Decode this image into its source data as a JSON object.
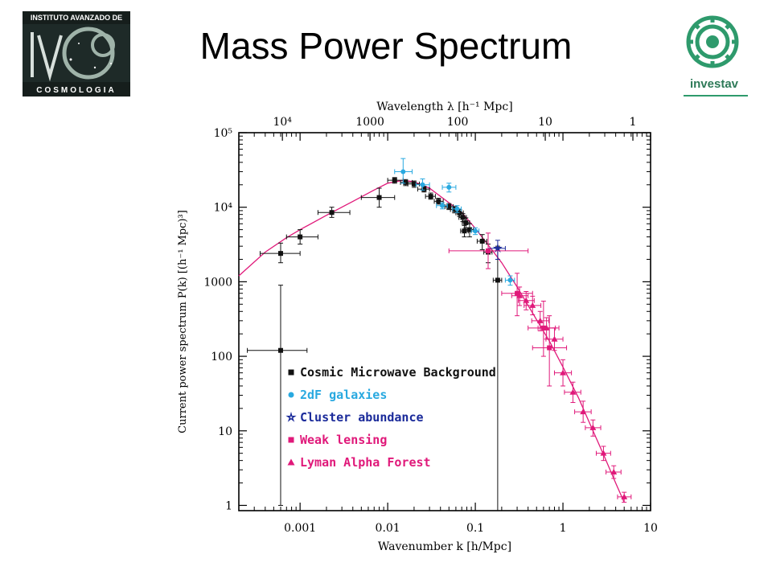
{
  "slide": {
    "title": "Mass Power Spectrum"
  },
  "logo_left": {
    "line1": "INSTITUTO AVANZADO DE",
    "line2": "COSMOLOGIA",
    "letters": "IACC"
  },
  "logo_right": {
    "name": "investav"
  },
  "colors": {
    "cmb": "#111111",
    "twodf": "#29a9e0",
    "cluster": "#1a2a9a",
    "lensing": "#e0197a",
    "lyman": "#e0197a",
    "theory": "#e0197a"
  },
  "chart_data": {
    "type": "scatter",
    "xlabel": "Wavenumber k [h/Mpc]",
    "x2label": "Wavelength λ [h⁻¹ Mpc]",
    "ylabel": "Current power spectrum P(k) [(h⁻¹ Mpc)³]",
    "xscale": "log",
    "yscale": "log",
    "xlim": [
      0.0002,
      10
    ],
    "ylim": [
      0.85,
      100000
    ],
    "x_ticks": [
      {
        "v": 0.001,
        "label": "0.001"
      },
      {
        "v": 0.01,
        "label": "0.01"
      },
      {
        "v": 0.1,
        "label": "0.1"
      },
      {
        "v": 1,
        "label": "1"
      },
      {
        "v": 10,
        "label": "10"
      }
    ],
    "y_ticks": [
      {
        "v": 1,
        "label": "1"
      },
      {
        "v": 10,
        "label": "10"
      },
      {
        "v": 100,
        "label": "100"
      },
      {
        "v": 1000,
        "label": "1000"
      },
      {
        "v": 10000,
        "label": "10⁴"
      },
      {
        "v": 100000,
        "label": "10⁵"
      }
    ],
    "x2_ticks": [
      {
        "v": 10000,
        "label": "10⁴"
      },
      {
        "v": 1000,
        "label": "1000"
      },
      {
        "v": 100,
        "label": "100"
      },
      {
        "v": 10,
        "label": "10"
      },
      {
        "v": 1,
        "label": "1"
      }
    ],
    "legend_position": "lower-center",
    "series": [
      {
        "name": "Cosmic Microwave Background",
        "key": "cmb",
        "marker": "square",
        "points": [
          {
            "x": 0.0006,
            "y": 120,
            "xe": [
              0.00025,
              0.0012
            ],
            "ye": [
              1,
              900
            ]
          },
          {
            "x": 0.0006,
            "y": 2400,
            "xe": [
              0.00035,
              0.001
            ],
            "ye": [
              1800,
              3300
            ]
          },
          {
            "x": 0.001,
            "y": 4000,
            "xe": [
              0.0007,
              0.0016
            ],
            "ye": [
              3200,
              5000
            ]
          },
          {
            "x": 0.0023,
            "y": 8500,
            "xe": [
              0.0016,
              0.0037
            ],
            "ye": [
              7300,
              10000
            ]
          },
          {
            "x": 0.008,
            "y": 13500,
            "xe": [
              0.005,
              0.012
            ],
            "ye": [
              10000,
              18000
            ]
          },
          {
            "x": 0.012,
            "y": 23000,
            "xe": [
              0.01,
              0.015
            ],
            "ye": [
              21000,
              25000
            ]
          },
          {
            "x": 0.016,
            "y": 21500,
            "xe": [
              0.014,
              0.019
            ],
            "ye": [
              19500,
              23500
            ]
          },
          {
            "x": 0.02,
            "y": 20500,
            "xe": [
              0.017,
              0.023
            ],
            "ye": [
              18500,
              22500
            ]
          },
          {
            "x": 0.026,
            "y": 17500,
            "xe": [
              0.022,
              0.03
            ],
            "ye": [
              16000,
              19000
            ]
          },
          {
            "x": 0.031,
            "y": 14000,
            "xe": [
              0.027,
              0.035
            ],
            "ye": [
              12800,
              15500
            ]
          },
          {
            "x": 0.038,
            "y": 12000,
            "xe": [
              0.034,
              0.043
            ],
            "ye": [
              11000,
              13200
            ]
          },
          {
            "x": 0.05,
            "y": 10200,
            "xe": [
              0.045,
              0.056
            ],
            "ye": [
              9300,
              11200
            ]
          },
          {
            "x": 0.058,
            "y": 9300,
            "xe": [
              0.052,
              0.064
            ],
            "ye": [
              8400,
              10200
            ]
          },
          {
            "x": 0.066,
            "y": 8400,
            "xe": [
              0.06,
              0.073
            ],
            "ye": [
              7500,
              9300
            ]
          },
          {
            "x": 0.072,
            "y": 7300,
            "xe": [
              0.065,
              0.079
            ],
            "ye": [
              6400,
              8200
            ]
          },
          {
            "x": 0.078,
            "y": 6200,
            "xe": [
              0.071,
              0.086
            ],
            "ye": [
              5300,
              7200
            ]
          },
          {
            "x": 0.086,
            "y": 5000,
            "xe": [
              0.078,
              0.095
            ],
            "ye": [
              4000,
              6000
            ]
          },
          {
            "x": 0.075,
            "y": 4800,
            "xe": [
              0.068,
              0.083
            ],
            "ye": [
              4000,
              5700
            ]
          },
          {
            "x": 0.12,
            "y": 3500,
            "xe": [
              0.105,
              0.135
            ],
            "ye": [
              2700,
              4300
            ]
          },
          {
            "x": 0.14,
            "y": 2500,
            "xe": [
              0.125,
              0.155
            ],
            "ye": [
              1800,
              3200
            ]
          },
          {
            "x": 0.18,
            "y": 1050,
            "xe": [
              0.16,
              0.2
            ],
            "ye": [
              0.8,
              3000
            ]
          }
        ]
      },
      {
        "name": "2dF galaxies",
        "key": "twodf",
        "marker": "circle",
        "points": [
          {
            "x": 0.015,
            "y": 30000,
            "xe": [
              0.012,
              0.019
            ],
            "ye": [
              21000,
              45000
            ]
          },
          {
            "x": 0.025,
            "y": 20000,
            "xe": [
              0.021,
              0.03
            ],
            "ye": [
              17000,
              24000
            ]
          },
          {
            "x": 0.042,
            "y": 10500,
            "xe": [
              0.036,
              0.048
            ],
            "ye": [
              9500,
              11500
            ]
          },
          {
            "x": 0.062,
            "y": 9500,
            "xe": [
              0.055,
              0.069
            ],
            "ye": [
              8500,
              10500
            ]
          },
          {
            "x": 0.1,
            "y": 4800,
            "xe": [
              0.09,
              0.11
            ],
            "ye": [
              4300,
              5300
            ]
          },
          {
            "x": 0.25,
            "y": 1050,
            "xe": [
              0.22,
              0.28
            ],
            "ye": [
              900,
              1200
            ]
          },
          {
            "x": 0.05,
            "y": 18500,
            "xe": [
              0.042,
              0.06
            ],
            "ye": [
              16000,
              21000
            ]
          }
        ]
      },
      {
        "name": "Cluster abundance",
        "key": "cluster",
        "marker": "star",
        "points": [
          {
            "x": 0.18,
            "y": 2800,
            "xe": [
              0.14,
              0.22
            ],
            "ye": [
              2000,
              3600
            ]
          }
        ]
      },
      {
        "name": "Weak lensing",
        "key": "lensing",
        "marker": "square",
        "points": [
          {
            "x": 0.14,
            "y": 2600,
            "xe": [
              0.05,
              0.4
            ],
            "ye": [
              1500,
              4500
            ]
          },
          {
            "x": 0.3,
            "y": 700,
            "xe": [
              0.2,
              0.45
            ],
            "ye": [
              350,
              1300
            ]
          },
          {
            "x": 0.6,
            "y": 240,
            "xe": [
              0.4,
              0.9
            ],
            "ye": [
              100,
              550
            ]
          },
          {
            "x": 0.7,
            "y": 130,
            "xe": [
              0.45,
              1.1
            ],
            "ye": [
              40,
              350
            ]
          }
        ]
      },
      {
        "name": "Lyman Alpha Forest",
        "key": "lyman",
        "marker": "triangle",
        "points": [
          {
            "x": 0.32,
            "y": 650,
            "xe": [
              0.26,
              0.4
            ],
            "ye": [
              480,
              850
            ]
          },
          {
            "x": 0.38,
            "y": 560,
            "xe": [
              0.31,
              0.47
            ],
            "ye": [
              420,
              740
            ]
          },
          {
            "x": 0.45,
            "y": 480,
            "xe": [
              0.36,
              0.56
            ],
            "ye": [
              360,
              640
            ]
          },
          {
            "x": 0.55,
            "y": 300,
            "xe": [
              0.44,
              0.69
            ],
            "ye": [
              220,
              400
            ]
          },
          {
            "x": 0.65,
            "y": 240,
            "xe": [
              0.52,
              0.82
            ],
            "ye": [
              170,
              330
            ]
          },
          {
            "x": 0.8,
            "y": 170,
            "xe": [
              0.64,
              1.0
            ],
            "ye": [
              120,
              240
            ]
          },
          {
            "x": 1.0,
            "y": 60,
            "xe": [
              0.8,
              1.25
            ],
            "ye": [
              40,
              90
            ]
          },
          {
            "x": 1.3,
            "y": 33,
            "xe": [
              1.04,
              1.6
            ],
            "ye": [
              24,
              45
            ]
          },
          {
            "x": 1.7,
            "y": 18,
            "xe": [
              1.36,
              2.1
            ],
            "ye": [
              13,
              25
            ]
          },
          {
            "x": 2.2,
            "y": 11,
            "xe": [
              1.8,
              2.7
            ],
            "ye": [
              8.5,
              14
            ]
          },
          {
            "x": 2.9,
            "y": 5,
            "xe": [
              2.4,
              3.5
            ],
            "ye": [
              4,
              6.2
            ]
          },
          {
            "x": 3.8,
            "y": 2.8,
            "xe": [
              3.1,
              4.6
            ],
            "ye": [
              2.3,
              3.4
            ]
          },
          {
            "x": 5.0,
            "y": 1.3,
            "xe": [
              4.2,
              6.0
            ],
            "ye": [
              1.1,
              1.5
            ]
          }
        ]
      }
    ],
    "theory_curve": [
      [
        0.0002,
        1200
      ],
      [
        0.0004,
        2500
      ],
      [
        0.0007,
        3900
      ],
      [
        0.001,
        5000
      ],
      [
        0.002,
        7800
      ],
      [
        0.004,
        12000
      ],
      [
        0.007,
        17000
      ],
      [
        0.01,
        21000
      ],
      [
        0.015,
        23000
      ],
      [
        0.02,
        22000
      ],
      [
        0.03,
        18000
      ],
      [
        0.05,
        11500
      ],
      [
        0.07,
        8500
      ],
      [
        0.1,
        5200
      ],
      [
        0.15,
        2800
      ],
      [
        0.2,
        1800
      ],
      [
        0.3,
        850
      ],
      [
        0.5,
        310
      ],
      [
        0.7,
        160
      ],
      [
        1.0,
        72
      ],
      [
        1.5,
        28
      ],
      [
        2.0,
        13
      ],
      [
        3.0,
        4.4
      ],
      [
        4.0,
        2.0
      ],
      [
        5.0,
        1.1
      ]
    ]
  }
}
